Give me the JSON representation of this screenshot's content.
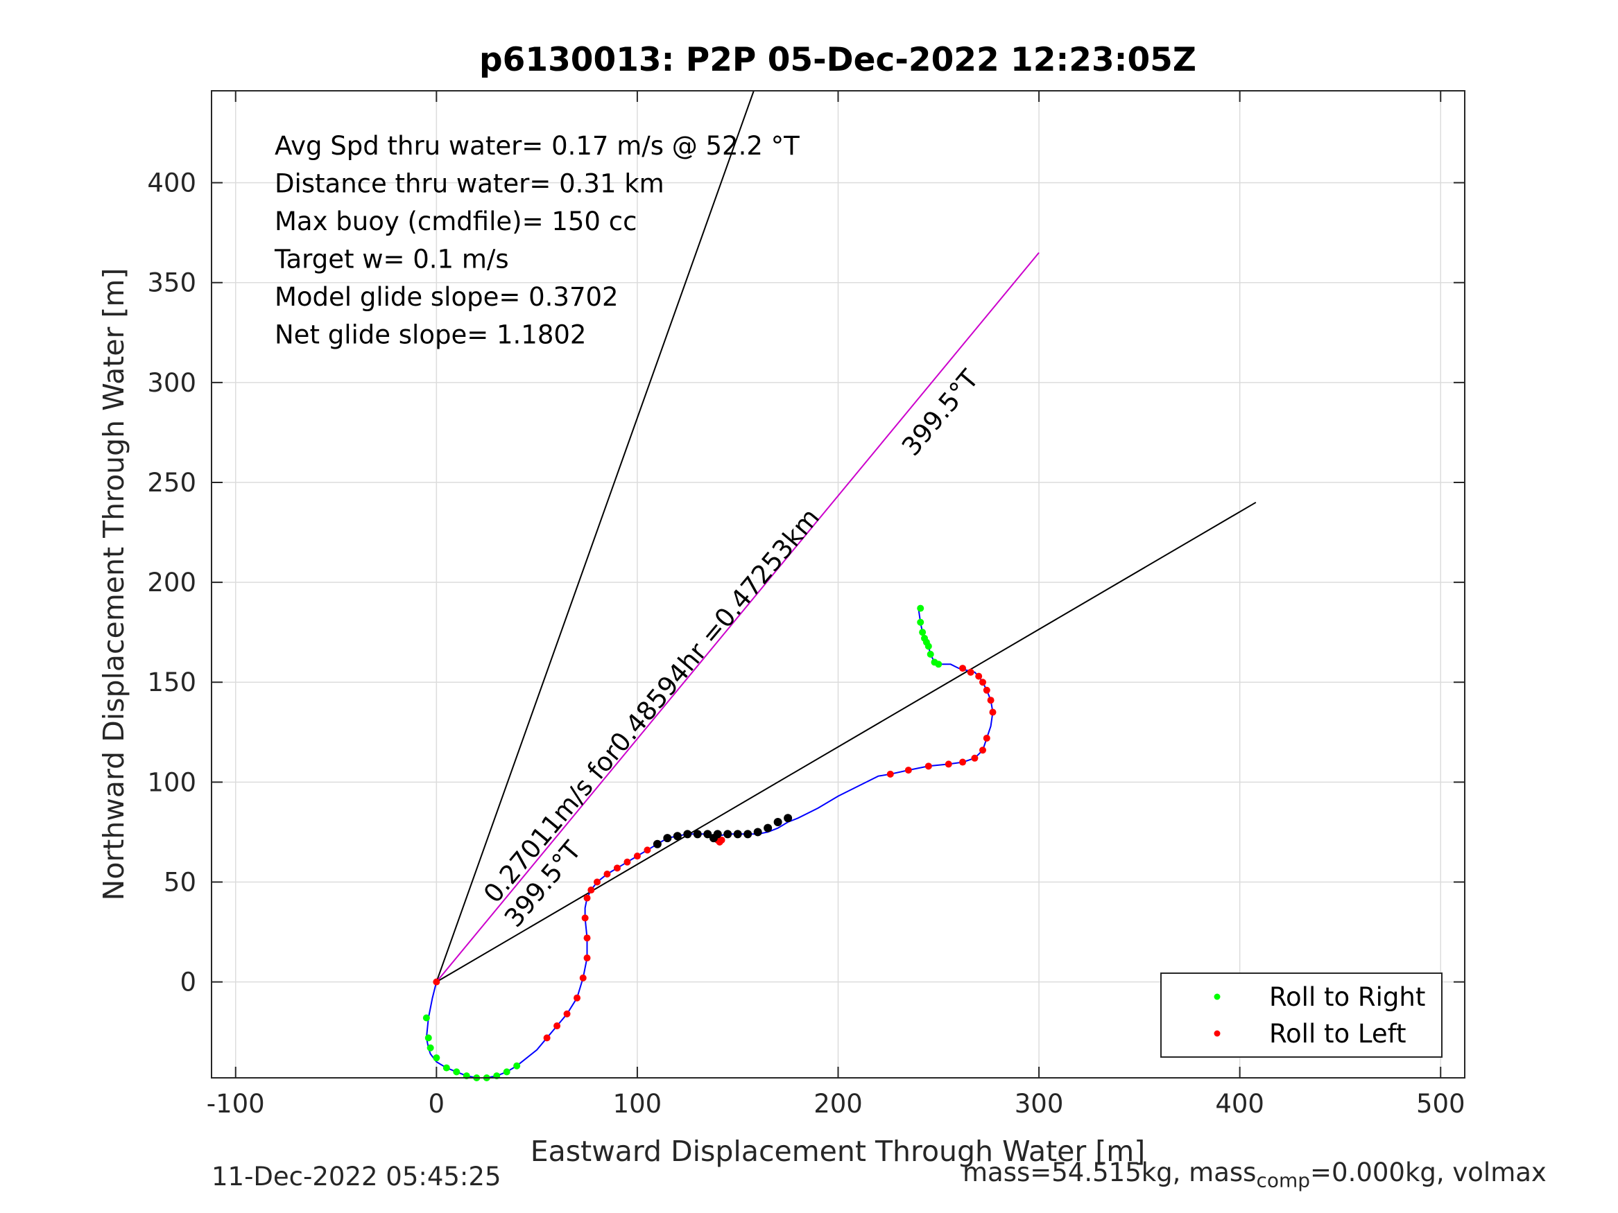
{
  "chart_data": {
    "type": "line",
    "title": "p6130013: P2P 05-Dec-2022 12:23:05Z",
    "xlabel": "Eastward Displacement Through Water [m]",
    "ylabel": "Northward Displacement Through Water [m]",
    "xlim": [
      -112,
      512
    ],
    "ylim": [
      -48,
      446
    ],
    "xticks": [
      -100,
      0,
      100,
      200,
      300,
      400,
      500
    ],
    "yticks": [
      0,
      50,
      100,
      150,
      200,
      250,
      300,
      350,
      400
    ],
    "grid": true,
    "annotations": [
      "Avg Spd thru water=  0.17 m/s @  52.2 °T",
      "Distance thru water=  0.31 km",
      "Max buoy (cmdfile)= 150 cc",
      "Target w= 0.1 m/s",
      "Model glide slope= 0.3702",
      "Net glide slope= 1.1802"
    ],
    "line_labels": {
      "upper_heading": "399.5°T",
      "lower_heading": "399.5°T",
      "speed_label": "0.27011m/s for0.48594hr =0.47253km"
    },
    "reference_lines": [
      {
        "name": "",
        "color": "#000000",
        "x": [
          0,
          158
        ],
        "y": [
          0,
          446
        ]
      },
      {
        "name": "",
        "color": "#000000",
        "x": [
          0,
          408
        ],
        "y": [
          0,
          240
        ]
      },
      {
        "name": "",
        "color": "#cc00cc",
        "x": [
          0,
          300
        ],
        "y": [
          0,
          365
        ]
      }
    ],
    "series": [
      {
        "name": "",
        "color": "#0000ff",
        "x": [
          0,
          -2,
          -4,
          -5,
          -4,
          -3,
          0,
          5,
          10,
          15,
          20,
          25,
          30,
          35,
          40,
          45,
          50,
          55,
          60,
          65,
          70,
          73,
          75,
          75,
          74,
          74,
          75,
          77,
          80,
          85,
          90,
          95,
          100,
          105,
          110,
          115,
          120,
          125,
          130,
          135,
          140,
          145,
          150,
          155,
          160,
          165,
          170,
          175,
          180,
          190,
          200,
          210,
          220,
          226,
          235,
          245,
          255,
          262,
          268,
          272,
          274,
          276,
          277,
          276,
          274,
          272,
          270,
          268,
          264,
          260,
          256,
          253,
          250,
          248,
          246,
          245,
          244,
          243,
          242,
          241,
          240
        ],
        "y": [
          0,
          -8,
          -18,
          -28,
          -33,
          -36,
          -40,
          -43,
          -45,
          -47,
          -48,
          -48,
          -47,
          -45,
          -42,
          -38,
          -34,
          -28,
          -22,
          -16,
          -8,
          2,
          12,
          22,
          32,
          37,
          42,
          46,
          50,
          54,
          57,
          60,
          63,
          66,
          69,
          72,
          73,
          74,
          74,
          74,
          73,
          74,
          74,
          74,
          74,
          75,
          77,
          80,
          82,
          87,
          93,
          98,
          103,
          104,
          106,
          108,
          109,
          110,
          112,
          116,
          122,
          128,
          135,
          141,
          146,
          150,
          153,
          155,
          156,
          157,
          159,
          159,
          159,
          160,
          164,
          168,
          170,
          172,
          175,
          180,
          187
        ]
      },
      {
        "name": "Roll to Right",
        "color": "#00ff00",
        "x": [
          -5,
          -4,
          -3,
          0,
          5,
          10,
          15,
          20,
          25,
          30,
          35,
          40,
          241,
          241,
          242,
          243,
          244,
          245,
          246,
          248,
          250
        ],
        "y": [
          -18,
          -28,
          -33,
          -38,
          -43,
          -45,
          -47,
          -48,
          -48,
          -47,
          -45,
          -42,
          187,
          180,
          175,
          172,
          170,
          168,
          164,
          160,
          159
        ]
      },
      {
        "name": "Roll to Left",
        "color": "#ff0000",
        "x": [
          0,
          55,
          60,
          65,
          70,
          73,
          75,
          75,
          74,
          75,
          77,
          80,
          85,
          90,
          95,
          100,
          105,
          110,
          140,
          141,
          142,
          226,
          235,
          245,
          255,
          262,
          268,
          272,
          274,
          262,
          266,
          270,
          272,
          274,
          276,
          277
        ],
        "y": [
          0,
          -28,
          -22,
          -16,
          -8,
          2,
          12,
          22,
          32,
          42,
          46,
          50,
          54,
          57,
          60,
          63,
          66,
          69,
          71,
          70,
          71,
          104,
          106,
          108,
          109,
          110,
          112,
          116,
          122,
          157,
          155,
          153,
          150,
          146,
          141,
          135
        ]
      },
      {
        "name": "",
        "color": "#000000",
        "x": [
          110,
          115,
          120,
          125,
          130,
          135,
          138,
          140,
          145,
          150,
          155,
          160,
          165,
          170,
          175
        ],
        "y": [
          69,
          72,
          73,
          74,
          74,
          74,
          72,
          74,
          74,
          74,
          74,
          75,
          77,
          80,
          82
        ]
      }
    ],
    "legend": {
      "placement": "bottom-right",
      "entries": [
        "Roll to Right",
        "Roll to Left"
      ]
    }
  },
  "footer": {
    "timestamp": "11-Dec-2022 05:45:25",
    "mass_prefix": "mass=54.515kg, mass",
    "mass_sub": "comp",
    "mass_suffix": "=0.000kg, volmax"
  }
}
